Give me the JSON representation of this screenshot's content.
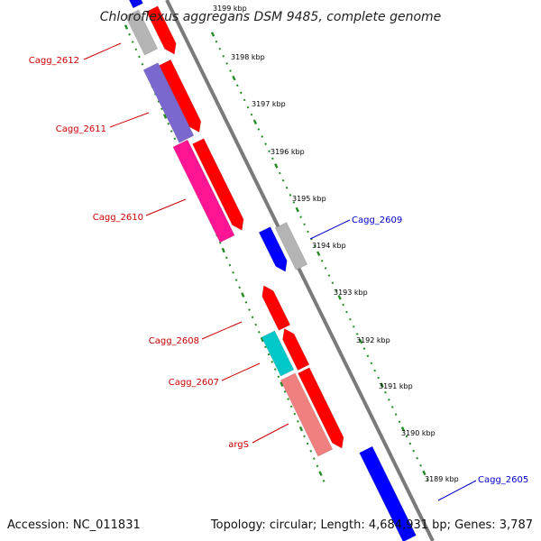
{
  "title": "Chloroflexus aggregans DSM 9485, complete genome",
  "footer": {
    "accession": "Accession: NC_011831",
    "summary": "Topology: circular; Length: 4,684,931 bp; Genes: 3,787"
  },
  "colors": {
    "backbone": "#808080",
    "tick": "#228b22",
    "label_red": "#cc0000",
    "label_blue": "#0000cc",
    "forward_cds": "#ff0000",
    "grey_gene": "#b4b4b4",
    "purple_gene": "#7b68cf",
    "magenta_gene": "#ff1493",
    "blue_gene": "#0000ff",
    "cyan_gene": "#00c8c8",
    "salmon_gene": "#f08080"
  },
  "kbp_labels": [
    "3199 kbp",
    "3198 kbp",
    "3197 kbp",
    "3196 kbp",
    "3195 kbp",
    "3194 kbp",
    "3193 kbp",
    "3192 kbp",
    "3191 kbp",
    "3190 kbp",
    "3189 kbp"
  ],
  "gene_labels": [
    {
      "text": "Cagg_2612",
      "color": "red"
    },
    {
      "text": "Cagg_2611",
      "color": "red"
    },
    {
      "text": "Cagg_2610",
      "color": "red"
    },
    {
      "text": "Cagg_2609",
      "color": "blue"
    },
    {
      "text": "Cagg_2608",
      "color": "red"
    },
    {
      "text": "Cagg_2607",
      "color": "red"
    },
    {
      "text": "argS",
      "color": "red"
    },
    {
      "text": "Cagg_2605",
      "color": "blue"
    }
  ]
}
